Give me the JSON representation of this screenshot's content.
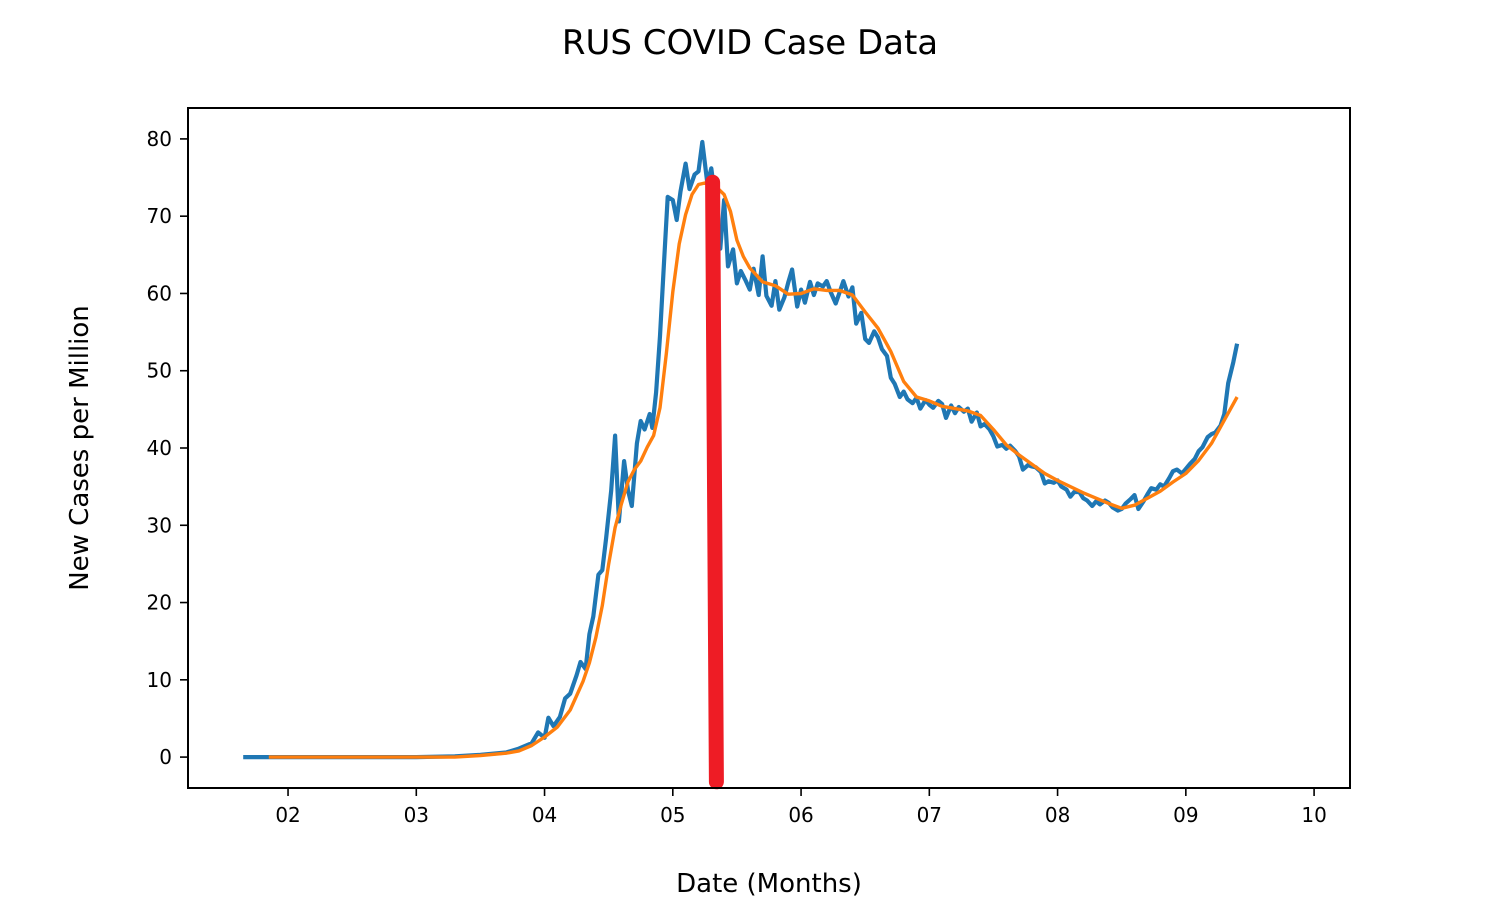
{
  "chart_data": {
    "type": "line",
    "title": "RUS COVID Case Data",
    "xlabel": "Date (Months)",
    "ylabel": "New Cases per Million",
    "x_unit": "month",
    "xlim": [
      1.22,
      10.28
    ],
    "ylim": [
      -4,
      84
    ],
    "xticks": [
      {
        "value": 2,
        "label": "02"
      },
      {
        "value": 3,
        "label": "03"
      },
      {
        "value": 4,
        "label": "04"
      },
      {
        "value": 5,
        "label": "05"
      },
      {
        "value": 6,
        "label": "06"
      },
      {
        "value": 7,
        "label": "07"
      },
      {
        "value": 8,
        "label": "08"
      },
      {
        "value": 9,
        "label": "09"
      },
      {
        "value": 10,
        "label": "10"
      }
    ],
    "yticks": [
      0,
      10,
      20,
      30,
      40,
      50,
      60,
      70,
      80
    ],
    "grid": false,
    "legend": "none",
    "series": [
      {
        "color": "#1f77b4",
        "points": [
          [
            1.65,
            0
          ],
          [
            1.85,
            0
          ],
          [
            2.2,
            0
          ],
          [
            2.6,
            0
          ],
          [
            3.0,
            0
          ],
          [
            3.3,
            0.1
          ],
          [
            3.5,
            0.3
          ],
          [
            3.7,
            0.6
          ],
          [
            3.8,
            1.1
          ],
          [
            3.9,
            1.8
          ],
          [
            3.95,
            3.2
          ],
          [
            4.0,
            2.5
          ],
          [
            4.03,
            5.1
          ],
          [
            4.07,
            4.0
          ],
          [
            4.12,
            5.2
          ],
          [
            4.16,
            7.6
          ],
          [
            4.2,
            8.2
          ],
          [
            4.25,
            10.6
          ],
          [
            4.28,
            12.3
          ],
          [
            4.32,
            11.4
          ],
          [
            4.35,
            15.9
          ],
          [
            4.38,
            18.2
          ],
          [
            4.42,
            23.6
          ],
          [
            4.45,
            24.2
          ],
          [
            4.48,
            28.3
          ],
          [
            4.52,
            34.5
          ],
          [
            4.55,
            41.6
          ],
          [
            4.58,
            30.5
          ],
          [
            4.62,
            38.3
          ],
          [
            4.65,
            34.6
          ],
          [
            4.68,
            32.5
          ],
          [
            4.72,
            40.6
          ],
          [
            4.75,
            43.5
          ],
          [
            4.78,
            42.4
          ],
          [
            4.82,
            44.4
          ],
          [
            4.84,
            42.6
          ],
          [
            4.87,
            47.2
          ],
          [
            4.9,
            54.5
          ],
          [
            4.93,
            63.5
          ],
          [
            4.96,
            72.5
          ],
          [
            5.0,
            72.1
          ],
          [
            5.03,
            69.5
          ],
          [
            5.06,
            73.2
          ],
          [
            5.1,
            76.8
          ],
          [
            5.13,
            73.5
          ],
          [
            5.17,
            75.4
          ],
          [
            5.2,
            75.8
          ],
          [
            5.23,
            79.6
          ],
          [
            5.27,
            74.2
          ],
          [
            5.3,
            76.2
          ],
          [
            5.33,
            72.4
          ],
          [
            5.37,
            65.8
          ],
          [
            5.4,
            72.1
          ],
          [
            5.43,
            63.5
          ],
          [
            5.47,
            65.7
          ],
          [
            5.5,
            61.3
          ],
          [
            5.53,
            62.9
          ],
          [
            5.57,
            61.6
          ],
          [
            5.6,
            60.5
          ],
          [
            5.63,
            63.2
          ],
          [
            5.67,
            59.8
          ],
          [
            5.7,
            64.8
          ],
          [
            5.73,
            59.7
          ],
          [
            5.77,
            58.4
          ],
          [
            5.8,
            61.6
          ],
          [
            5.83,
            57.9
          ],
          [
            5.87,
            59.5
          ],
          [
            5.9,
            61.4
          ],
          [
            5.93,
            63.1
          ],
          [
            5.97,
            58.3
          ],
          [
            6.0,
            60.5
          ],
          [
            6.03,
            58.8
          ],
          [
            6.07,
            61.5
          ],
          [
            6.1,
            59.8
          ],
          [
            6.13,
            61.3
          ],
          [
            6.17,
            60.9
          ],
          [
            6.2,
            61.6
          ],
          [
            6.23,
            60.2
          ],
          [
            6.27,
            58.7
          ],
          [
            6.3,
            60.1
          ],
          [
            6.33,
            61.6
          ],
          [
            6.37,
            59.6
          ],
          [
            6.4,
            60.8
          ],
          [
            6.43,
            56.1
          ],
          [
            6.47,
            57.5
          ],
          [
            6.5,
            54.1
          ],
          [
            6.53,
            53.6
          ],
          [
            6.57,
            55.1
          ],
          [
            6.6,
            54.3
          ],
          [
            6.63,
            52.8
          ],
          [
            6.67,
            51.9
          ],
          [
            6.7,
            49.1
          ],
          [
            6.73,
            48.3
          ],
          [
            6.77,
            46.6
          ],
          [
            6.8,
            47.3
          ],
          [
            6.83,
            46.3
          ],
          [
            6.87,
            45.8
          ],
          [
            6.9,
            46.5
          ],
          [
            6.93,
            45.1
          ],
          [
            6.97,
            46.2
          ],
          [
            7.0,
            45.6
          ],
          [
            7.03,
            45.2
          ],
          [
            7.07,
            46.1
          ],
          [
            7.1,
            45.7
          ],
          [
            7.13,
            43.9
          ],
          [
            7.17,
            45.5
          ],
          [
            7.2,
            44.5
          ],
          [
            7.23,
            45.3
          ],
          [
            7.27,
            44.7
          ],
          [
            7.3,
            45.1
          ],
          [
            7.33,
            43.4
          ],
          [
            7.37,
            44.6
          ],
          [
            7.4,
            42.8
          ],
          [
            7.43,
            43.1
          ],
          [
            7.47,
            42.4
          ],
          [
            7.5,
            41.5
          ],
          [
            7.53,
            40.2
          ],
          [
            7.57,
            40.4
          ],
          [
            7.6,
            39.9
          ],
          [
            7.63,
            40.3
          ],
          [
            7.67,
            39.6
          ],
          [
            7.7,
            38.9
          ],
          [
            7.73,
            37.2
          ],
          [
            7.77,
            37.8
          ],
          [
            7.8,
            37.6
          ],
          [
            7.83,
            37.5
          ],
          [
            7.87,
            36.9
          ],
          [
            7.9,
            35.4
          ],
          [
            7.93,
            35.7
          ],
          [
            7.97,
            35.5
          ],
          [
            8.0,
            35.8
          ],
          [
            8.03,
            35.0
          ],
          [
            8.07,
            34.6
          ],
          [
            8.1,
            33.7
          ],
          [
            8.13,
            34.3
          ],
          [
            8.17,
            34.3
          ],
          [
            8.2,
            33.5
          ],
          [
            8.23,
            33.2
          ],
          [
            8.27,
            32.5
          ],
          [
            8.3,
            33.1
          ],
          [
            8.33,
            32.7
          ],
          [
            8.37,
            33.2
          ],
          [
            8.4,
            32.9
          ],
          [
            8.43,
            32.3
          ],
          [
            8.47,
            31.9
          ],
          [
            8.5,
            32.1
          ],
          [
            8.53,
            32.8
          ],
          [
            8.57,
            33.4
          ],
          [
            8.6,
            33.9
          ],
          [
            8.63,
            32.1
          ],
          [
            8.67,
            33.1
          ],
          [
            8.7,
            34.0
          ],
          [
            8.73,
            34.8
          ],
          [
            8.77,
            34.6
          ],
          [
            8.8,
            35.3
          ],
          [
            8.83,
            35.0
          ],
          [
            8.87,
            36.1
          ],
          [
            8.9,
            37.0
          ],
          [
            8.93,
            37.2
          ],
          [
            8.97,
            36.7
          ],
          [
            9.0,
            37.3
          ],
          [
            9.03,
            37.9
          ],
          [
            9.07,
            38.6
          ],
          [
            9.1,
            39.6
          ],
          [
            9.13,
            40.1
          ],
          [
            9.17,
            41.4
          ],
          [
            9.2,
            41.8
          ],
          [
            9.23,
            42.0
          ],
          [
            9.27,
            42.9
          ],
          [
            9.3,
            44.4
          ],
          [
            9.33,
            48.4
          ],
          [
            9.37,
            51.1
          ],
          [
            9.4,
            53.5
          ]
        ]
      },
      {
        "color": "#ff7f0e",
        "points": [
          [
            1.85,
            0
          ],
          [
            2.2,
            0
          ],
          [
            2.6,
            0
          ],
          [
            3.0,
            0
          ],
          [
            3.3,
            0
          ],
          [
            3.5,
            0.2
          ],
          [
            3.7,
            0.5
          ],
          [
            3.8,
            0.8
          ],
          [
            3.9,
            1.5
          ],
          [
            4.0,
            2.6
          ],
          [
            4.1,
            3.9
          ],
          [
            4.2,
            6.1
          ],
          [
            4.3,
            9.8
          ],
          [
            4.35,
            12.2
          ],
          [
            4.4,
            15.5
          ],
          [
            4.45,
            19.6
          ],
          [
            4.5,
            25.0
          ],
          [
            4.55,
            29.7
          ],
          [
            4.6,
            32.8
          ],
          [
            4.65,
            35.6
          ],
          [
            4.7,
            37.2
          ],
          [
            4.75,
            38.3
          ],
          [
            4.8,
            40.1
          ],
          [
            4.85,
            41.6
          ],
          [
            4.9,
            45.2
          ],
          [
            4.95,
            52.3
          ],
          [
            5.0,
            60.2
          ],
          [
            5.05,
            66.4
          ],
          [
            5.1,
            70.2
          ],
          [
            5.15,
            72.8
          ],
          [
            5.2,
            74.1
          ],
          [
            5.25,
            74.3
          ],
          [
            5.3,
            74.0
          ],
          [
            5.35,
            73.6
          ],
          [
            5.4,
            72.8
          ],
          [
            5.45,
            70.6
          ],
          [
            5.5,
            66.9
          ],
          [
            5.55,
            64.8
          ],
          [
            5.6,
            63.3
          ],
          [
            5.65,
            62.4
          ],
          [
            5.7,
            61.5
          ],
          [
            5.8,
            61.0
          ],
          [
            5.9,
            59.9
          ],
          [
            6.0,
            60.0
          ],
          [
            6.1,
            60.6
          ],
          [
            6.2,
            60.4
          ],
          [
            6.3,
            60.4
          ],
          [
            6.4,
            59.8
          ],
          [
            6.5,
            57.6
          ],
          [
            6.6,
            55.5
          ],
          [
            6.7,
            52.5
          ],
          [
            6.8,
            48.6
          ],
          [
            6.9,
            46.6
          ],
          [
            7.0,
            46.1
          ],
          [
            7.1,
            45.4
          ],
          [
            7.2,
            45.1
          ],
          [
            7.3,
            44.8
          ],
          [
            7.4,
            44.2
          ],
          [
            7.5,
            42.4
          ],
          [
            7.6,
            40.4
          ],
          [
            7.7,
            39.1
          ],
          [
            7.8,
            37.9
          ],
          [
            7.9,
            36.7
          ],
          [
            8.0,
            35.8
          ],
          [
            8.1,
            35.0
          ],
          [
            8.2,
            34.2
          ],
          [
            8.3,
            33.5
          ],
          [
            8.4,
            32.8
          ],
          [
            8.5,
            32.2
          ],
          [
            8.6,
            32.6
          ],
          [
            8.7,
            33.5
          ],
          [
            8.8,
            34.4
          ],
          [
            8.9,
            35.6
          ],
          [
            9.0,
            36.7
          ],
          [
            9.1,
            38.4
          ],
          [
            9.2,
            40.6
          ],
          [
            9.3,
            43.6
          ],
          [
            9.4,
            46.6
          ]
        ]
      },
      {
        "color": "#ee1c25",
        "points": [
          [
            5.31,
            74.4
          ],
          [
            5.34,
            -3.2
          ]
        ]
      }
    ]
  }
}
